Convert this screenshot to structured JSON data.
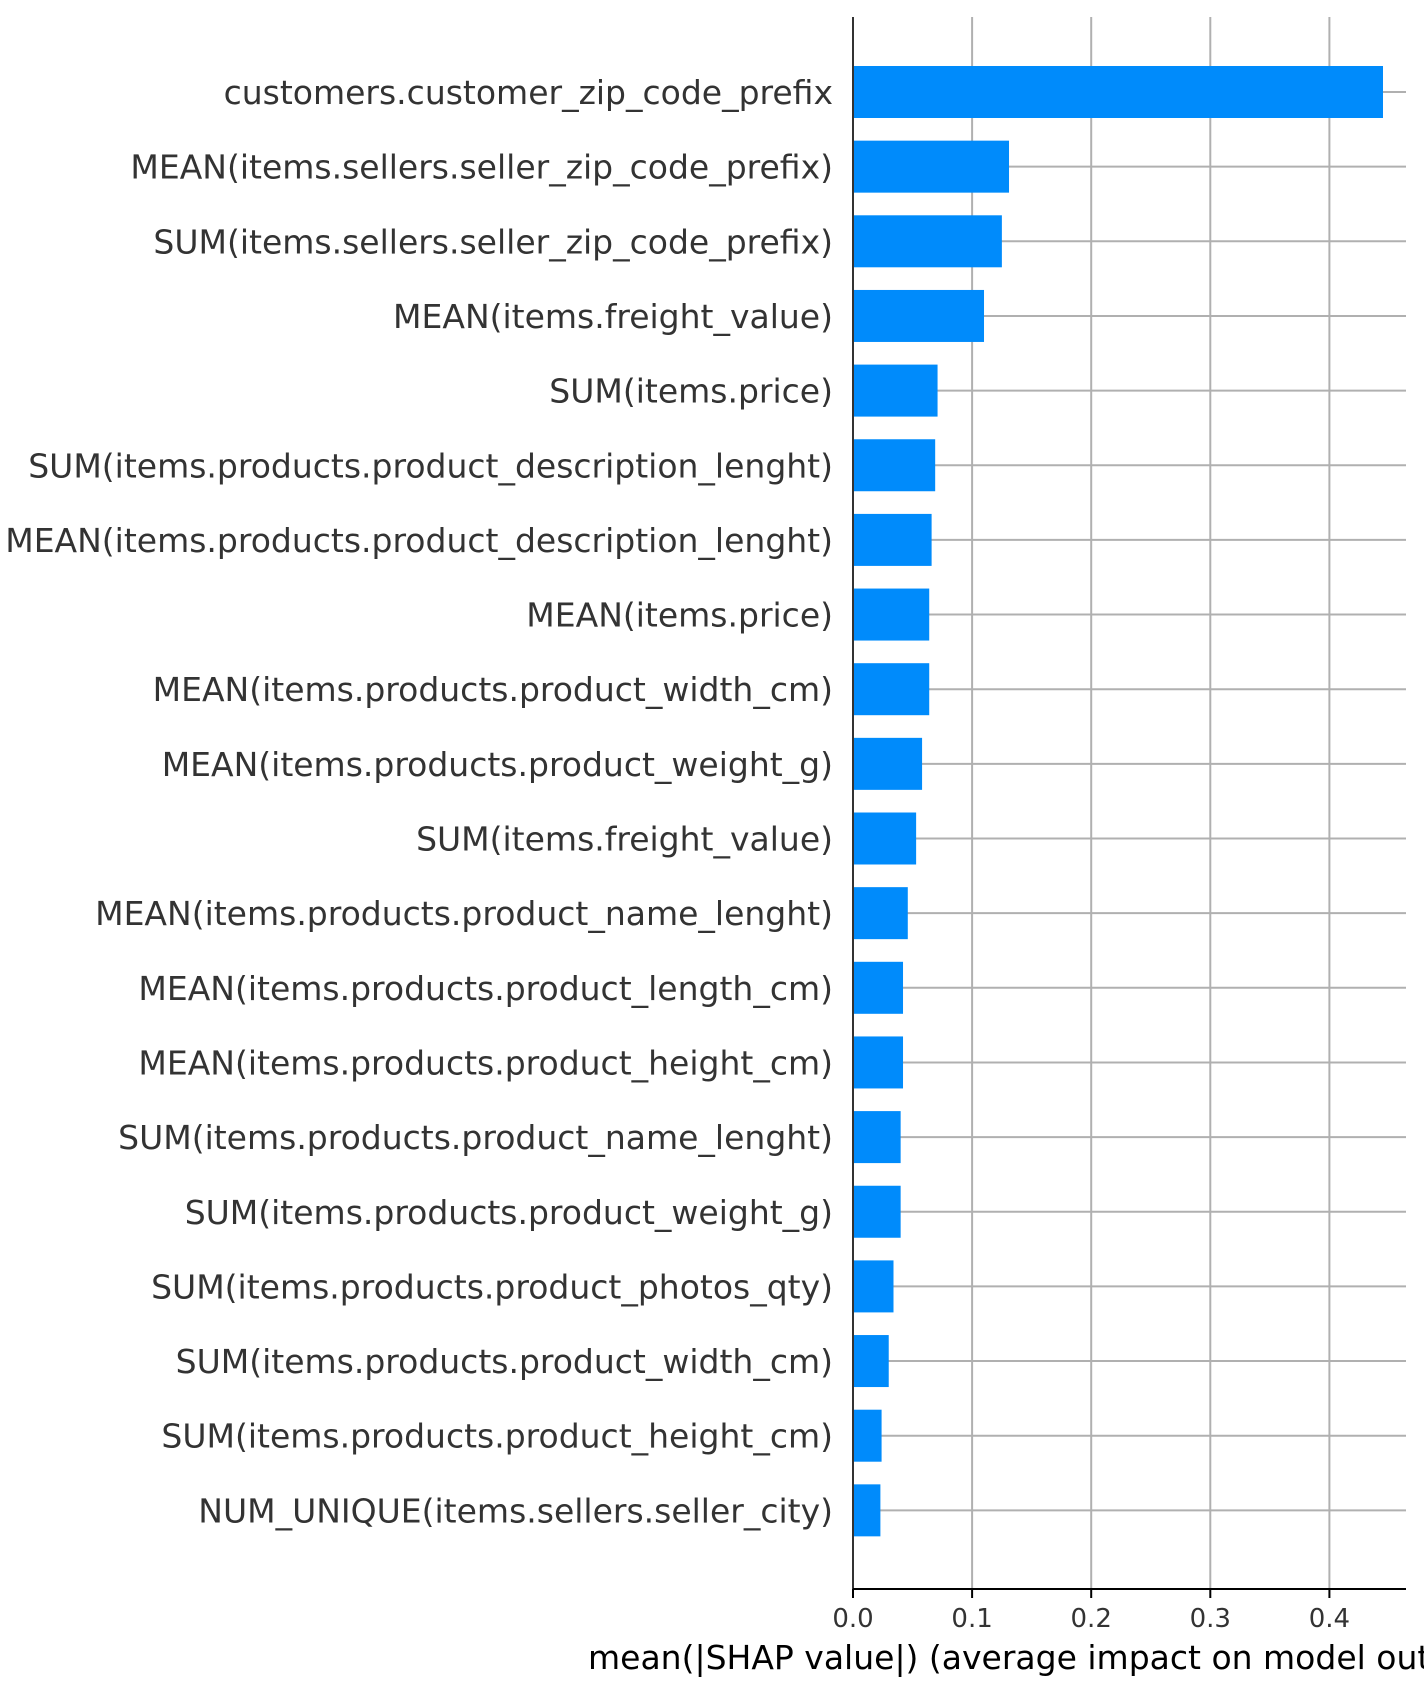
{
  "chart_data": {
    "type": "bar",
    "orientation": "horizontal",
    "categories": [
      "customers.customer_zip_code_prefix",
      "MEAN(items.sellers.seller_zip_code_prefix)",
      "SUM(items.sellers.seller_zip_code_prefix)",
      "MEAN(items.freight_value)",
      "SUM(items.price)",
      "SUM(items.products.product_description_lenght)",
      "MEAN(items.products.product_description_lenght)",
      "MEAN(items.price)",
      "MEAN(items.products.product_width_cm)",
      "MEAN(items.products.product_weight_g)",
      "SUM(items.freight_value)",
      "MEAN(items.products.product_name_lenght)",
      "MEAN(items.products.product_length_cm)",
      "MEAN(items.products.product_height_cm)",
      "SUM(items.products.product_name_lenght)",
      "SUM(items.products.product_weight_g)",
      "SUM(items.products.product_photos_qty)",
      "SUM(items.products.product_width_cm)",
      "SUM(items.products.product_height_cm)",
      "NUM_UNIQUE(items.sellers.seller_city)"
    ],
    "values": [
      0.445,
      0.131,
      0.125,
      0.11,
      0.071,
      0.069,
      0.066,
      0.064,
      0.064,
      0.058,
      0.053,
      0.046,
      0.042,
      0.042,
      0.04,
      0.04,
      0.034,
      0.03,
      0.024,
      0.023
    ],
    "xlabel": "mean(|SHAP value|) (average impact on model output magnitude)",
    "xticks": [
      "0.0",
      "0.1",
      "0.2",
      "0.3",
      "0.4"
    ],
    "xlim": [
      0,
      0.468
    ],
    "grid": true,
    "bar_color": "#008bfb",
    "grid_color": "#b0b0b0"
  }
}
